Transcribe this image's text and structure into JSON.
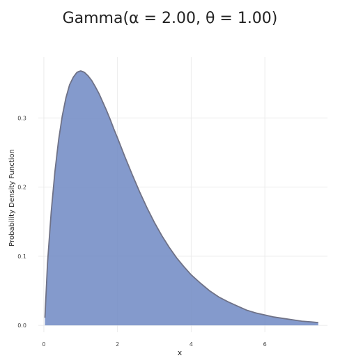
{
  "chart_data": {
    "type": "area",
    "title": "Gamma(α = 2.00, θ = 1.00)",
    "xlabel": "x",
    "ylabel": "Probability Density Function",
    "xlim": [
      -0.15,
      7.7
    ],
    "ylim": [
      -0.01,
      0.388
    ],
    "x_ticks": [
      0,
      2,
      4,
      6
    ],
    "y_ticks": [
      0.0,
      0.1,
      0.2,
      0.3
    ],
    "x_tick_labels": [
      "0",
      "2",
      "4",
      "6"
    ],
    "y_tick_labels": [
      "0.0",
      "0.1",
      "0.2",
      "0.3"
    ],
    "grid": true,
    "fill_color": "#6f88c3",
    "line_color": "#6f7287",
    "series": [
      {
        "x": [
          0.03,
          0.1,
          0.2,
          0.3,
          0.4,
          0.5,
          0.6,
          0.7,
          0.8,
          0.9,
          1.0,
          1.1,
          1.2,
          1.3,
          1.4,
          1.5,
          1.6,
          1.7,
          1.8,
          1.9,
          2.0,
          2.2,
          2.4,
          2.6,
          2.8,
          3.0,
          3.2,
          3.4,
          3.6,
          3.8,
          4.0,
          4.25,
          4.5,
          4.75,
          5.0,
          5.25,
          5.5,
          5.75,
          6.0,
          6.25,
          6.5,
          6.75,
          7.0,
          7.25,
          7.45
        ],
        "y": [
          0.011,
          0.09,
          0.164,
          0.222,
          0.268,
          0.303,
          0.329,
          0.348,
          0.359,
          0.366,
          0.368,
          0.366,
          0.361,
          0.354,
          0.345,
          0.335,
          0.323,
          0.311,
          0.298,
          0.284,
          0.271,
          0.244,
          0.218,
          0.193,
          0.17,
          0.149,
          0.13,
          0.113,
          0.098,
          0.085,
          0.073,
          0.061,
          0.05,
          0.041,
          0.034,
          0.028,
          0.022,
          0.018,
          0.015,
          0.012,
          0.01,
          0.008,
          0.006,
          0.005,
          0.004
        ]
      }
    ]
  }
}
